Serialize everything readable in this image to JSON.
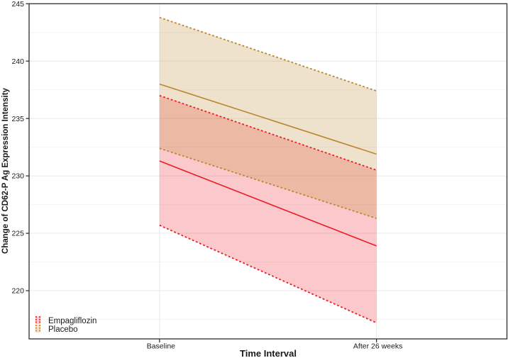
{
  "chart_data": {
    "type": "line",
    "title": "",
    "xlabel": "Time Interval",
    "ylabel": "Change of CD62-P Ag Expression Intensity",
    "categories": [
      "Baseline",
      "After 26 weeks"
    ],
    "ylim": [
      215.8,
      245
    ],
    "yticks": [
      220,
      225,
      230,
      235,
      240,
      245
    ],
    "y_minor_ticks": [
      217.5,
      222.5,
      227.5,
      232.5,
      237.5,
      242.5
    ],
    "grid": "horizontal major and minor gridlines; vertical gridlines at each category",
    "legend_position": "inside bottom-left",
    "series": [
      {
        "name": "Empagliflozin",
        "color": "#ee1c25",
        "fill_opacity": 0.24,
        "mean": [
          231.3,
          223.9
        ],
        "ci_low": [
          225.7,
          217.2
        ],
        "ci_high": [
          237.0,
          230.5
        ]
      },
      {
        "name": "Placebo",
        "color": "#bc8530",
        "fill_opacity": 0.24,
        "mean": [
          238.0,
          231.9
        ],
        "ci_low": [
          232.4,
          226.3
        ],
        "ci_high": [
          243.8,
          237.4
        ]
      }
    ]
  },
  "style": {
    "grid_major_color": "#e8e8e8",
    "grid_minor_color": "#f4f4f4",
    "panel_border_color": "#2e2e2e",
    "tick_color": "#2e2e2e",
    "text_color": "#1a1a1a"
  }
}
